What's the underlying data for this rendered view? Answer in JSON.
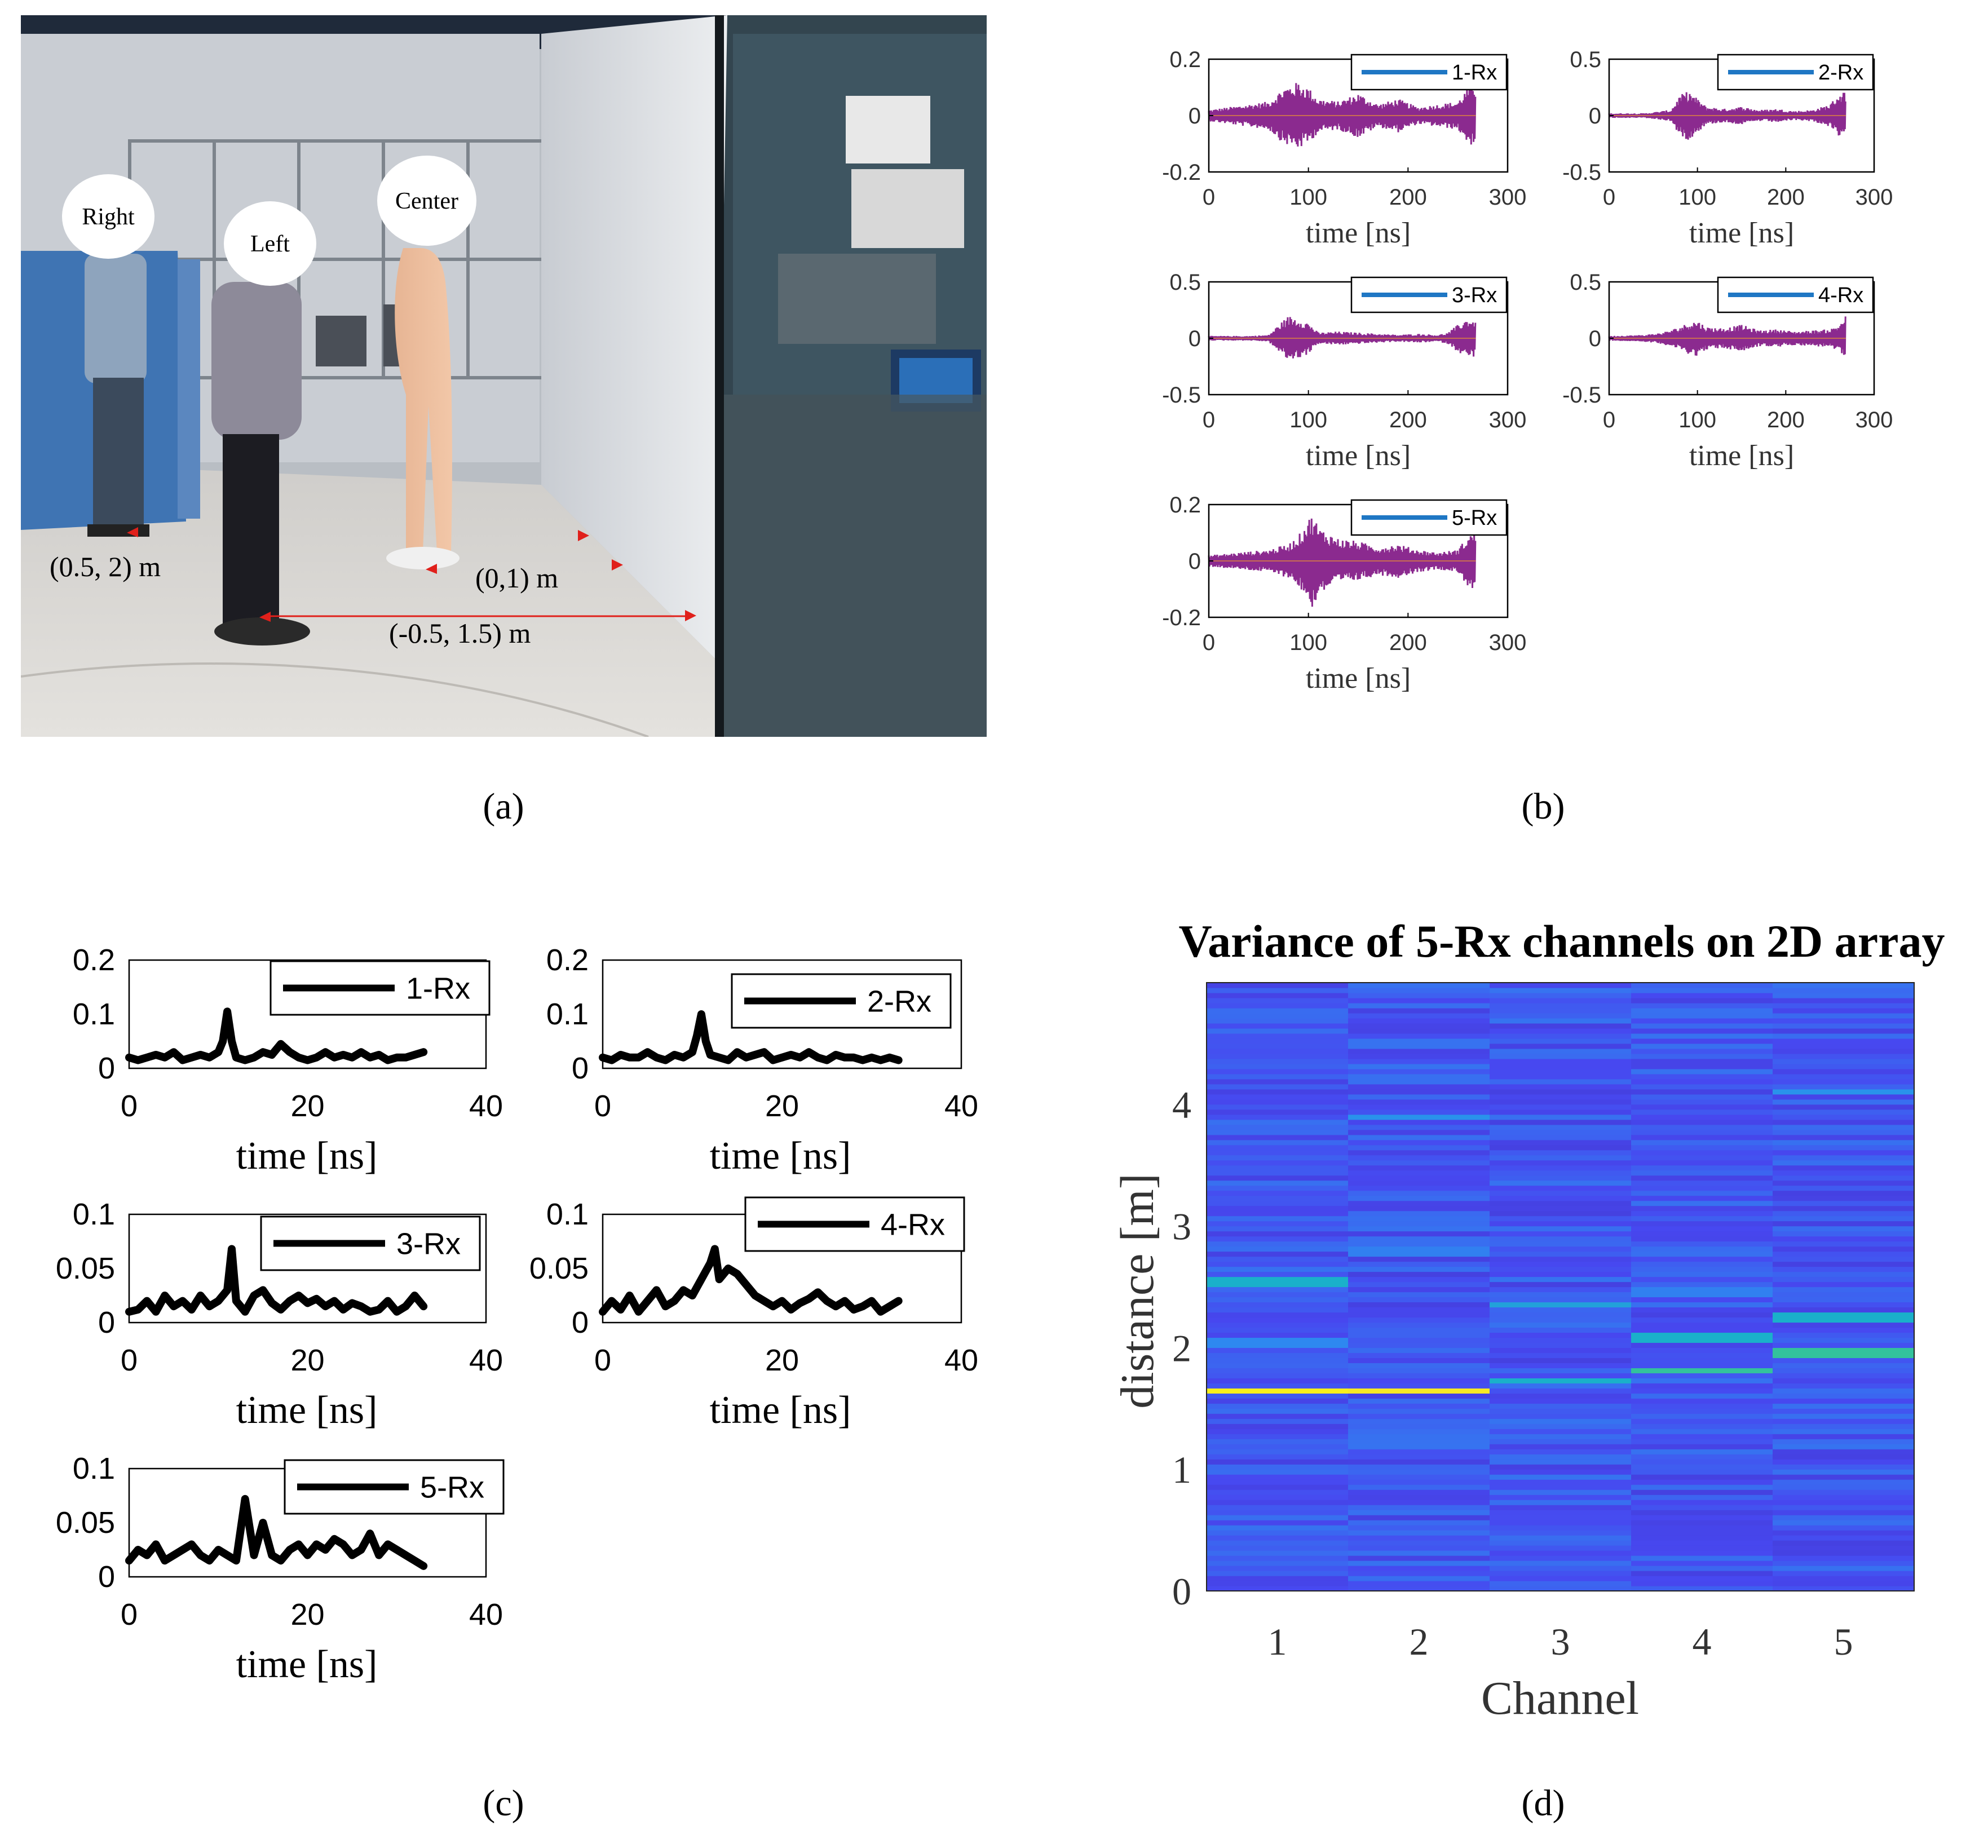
{
  "figure": {
    "panel_labels": {
      "a": "(a)",
      "b": "(b)",
      "c": "(c)",
      "d": "(d)"
    }
  },
  "photo": {
    "head_labels": [
      "Right",
      "Left",
      "Center"
    ],
    "position_labels": [
      "(0.5, 2) m",
      "(0,1) m",
      "(-0.5, 1.5) m"
    ],
    "colors": {
      "wall": "#d9dce0",
      "floor": "#d8d6d2",
      "ceiling": "#1f2a3a",
      "partition": "#3f74b3",
      "glass": "#33454f",
      "marker": "#e0201b"
    }
  },
  "chart_data": [
    {
      "id": "b",
      "type": "line",
      "title": "",
      "xlabel": "time [ns]",
      "ylabel": "",
      "x_range": [
        0,
        300
      ],
      "x_ticks": [
        0,
        100,
        200,
        300
      ],
      "line_color": "#1f77c4",
      "signal_color": "#8b2a8f",
      "plots": [
        {
          "legend": "1-Rx",
          "ylim": [
            -0.2,
            0.2
          ],
          "yticks": [
            "0.2",
            "0",
            "-0.2"
          ],
          "series": [
            {
              "name": "1-Rx",
              "x": [
                0,
                20,
                40,
                60,
                75,
                90,
                100,
                110,
                130,
                150,
                170,
                190,
                210,
                230,
                250,
                260,
                268
              ],
              "amp": [
                0.02,
                0.03,
                0.04,
                0.05,
                0.1,
                0.12,
                0.1,
                0.06,
                0.05,
                0.08,
                0.04,
                0.06,
                0.03,
                0.04,
                0.05,
                0.1,
                0.11
              ]
            }
          ]
        },
        {
          "legend": "2-Rx",
          "ylim": [
            -0.5,
            0.5
          ],
          "yticks": [
            "0.5",
            "0",
            "-0.5"
          ],
          "series": [
            {
              "name": "2-Rx",
              "x": [
                0,
                40,
                70,
                80,
                90,
                100,
                110,
                130,
                150,
                170,
                190,
                210,
                230,
                250,
                260,
                268
              ],
              "amp": [
                0.02,
                0.02,
                0.05,
                0.18,
                0.22,
                0.15,
                0.08,
                0.06,
                0.08,
                0.05,
                0.06,
                0.04,
                0.05,
                0.1,
                0.2,
                0.22
              ]
            }
          ]
        },
        {
          "legend": "3-Rx",
          "ylim": [
            -0.5,
            0.5
          ],
          "yticks": [
            "0.5",
            "0",
            "-0.5"
          ],
          "series": [
            {
              "name": "3-Rx",
              "x": [
                0,
                40,
                60,
                70,
                80,
                90,
                100,
                110,
                130,
                150,
                170,
                190,
                210,
                230,
                240,
                250,
                260,
                268
              ],
              "amp": [
                0.02,
                0.02,
                0.03,
                0.12,
                0.2,
                0.18,
                0.14,
                0.05,
                0.06,
                0.05,
                0.04,
                0.03,
                0.04,
                0.03,
                0.05,
                0.12,
                0.18,
                0.16
              ]
            }
          ]
        },
        {
          "legend": "4-Rx",
          "ylim": [
            -0.5,
            0.5
          ],
          "yticks": [
            "0.5",
            "0",
            "-0.5"
          ],
          "series": [
            {
              "name": "4-Rx",
              "x": [
                0,
                40,
                60,
                80,
                90,
                100,
                110,
                130,
                150,
                170,
                190,
                210,
                230,
                250,
                260,
                268
              ],
              "amp": [
                0.02,
                0.03,
                0.05,
                0.1,
                0.14,
                0.16,
                0.1,
                0.09,
                0.12,
                0.07,
                0.08,
                0.06,
                0.07,
                0.08,
                0.12,
                0.22
              ]
            }
          ]
        },
        {
          "legend": "5-Rx",
          "ylim": [
            -0.2,
            0.2
          ],
          "yticks": [
            "0.2",
            "0",
            "-0.2"
          ],
          "series": [
            {
              "name": "5-Rx",
              "x": [
                0,
                30,
                60,
                80,
                90,
                100,
                105,
                110,
                130,
                150,
                170,
                190,
                210,
                230,
                250,
                260,
                268
              ],
              "amp": [
                0.02,
                0.03,
                0.04,
                0.06,
                0.09,
                0.15,
                0.17,
                0.12,
                0.08,
                0.07,
                0.05,
                0.06,
                0.04,
                0.03,
                0.04,
                0.09,
                0.11
              ]
            }
          ]
        }
      ]
    },
    {
      "id": "c",
      "type": "line",
      "title": "",
      "xlabel": "time [ns]",
      "ylabel": "",
      "x_range": [
        0,
        40
      ],
      "x_ticks": [
        0,
        20,
        40
      ],
      "line_color": "#000000",
      "plots": [
        {
          "legend": "1-Rx",
          "ylim": [
            0,
            0.2
          ],
          "yticks": [
            "0.2",
            "0.1",
            "0"
          ],
          "series": [
            {
              "name": "1-Rx",
              "x": [
                0,
                1,
                2,
                3,
                4,
                5,
                6,
                7,
                8,
                9,
                10,
                10.5,
                11,
                11.5,
                12,
                13,
                14,
                15,
                16,
                17,
                18,
                19,
                20,
                21,
                22,
                23,
                24,
                25,
                26,
                27,
                28,
                29,
                30,
                31,
                32,
                33
              ],
              "y": [
                0.02,
                0.015,
                0.02,
                0.025,
                0.02,
                0.03,
                0.015,
                0.02,
                0.025,
                0.02,
                0.03,
                0.05,
                0.105,
                0.05,
                0.02,
                0.015,
                0.02,
                0.03,
                0.025,
                0.045,
                0.03,
                0.02,
                0.015,
                0.02,
                0.03,
                0.02,
                0.025,
                0.02,
                0.03,
                0.02,
                0.025,
                0.015,
                0.02,
                0.02,
                0.025,
                0.03
              ]
            }
          ]
        },
        {
          "legend": "2-Rx",
          "ylim": [
            0,
            0.2
          ],
          "yticks": [
            "0.2",
            "0.1",
            "0"
          ],
          "series": [
            {
              "name": "2-Rx",
              "x": [
                0,
                1,
                2,
                3,
                4,
                5,
                6,
                7,
                8,
                9,
                10,
                10.5,
                11,
                11.5,
                12,
                13,
                14,
                15,
                16,
                17,
                18,
                19,
                20,
                21,
                22,
                23,
                24,
                25,
                26,
                27,
                28,
                29,
                30,
                31,
                32,
                33
              ],
              "y": [
                0.02,
                0.015,
                0.025,
                0.02,
                0.02,
                0.03,
                0.02,
                0.015,
                0.025,
                0.02,
                0.03,
                0.06,
                0.1,
                0.05,
                0.025,
                0.02,
                0.015,
                0.03,
                0.02,
                0.025,
                0.03,
                0.015,
                0.02,
                0.025,
                0.02,
                0.03,
                0.02,
                0.015,
                0.025,
                0.02,
                0.02,
                0.015,
                0.02,
                0.015,
                0.02,
                0.015
              ]
            }
          ]
        },
        {
          "legend": "3-Rx",
          "ylim": [
            0,
            0.1
          ],
          "yticks": [
            "0.1",
            "0.05",
            "0"
          ],
          "series": [
            {
              "name": "3-Rx",
              "x": [
                0,
                1,
                2,
                3,
                4,
                5,
                6,
                7,
                8,
                9,
                10,
                11,
                11.5,
                12,
                13,
                14,
                15,
                16,
                17,
                18,
                19,
                20,
                21,
                22,
                23,
                24,
                25,
                26,
                27,
                28,
                29,
                30,
                31,
                32,
                33
              ],
              "y": [
                0.01,
                0.012,
                0.02,
                0.01,
                0.025,
                0.015,
                0.02,
                0.012,
                0.025,
                0.015,
                0.02,
                0.03,
                0.068,
                0.02,
                0.01,
                0.025,
                0.03,
                0.018,
                0.012,
                0.02,
                0.025,
                0.018,
                0.022,
                0.015,
                0.02,
                0.012,
                0.018,
                0.015,
                0.01,
                0.012,
                0.02,
                0.01,
                0.015,
                0.025,
                0.015
              ]
            }
          ]
        },
        {
          "legend": "4-Rx",
          "ylim": [
            0,
            0.1
          ],
          "yticks": [
            "0.1",
            "0.05",
            "0"
          ],
          "series": [
            {
              "name": "4-Rx",
              "x": [
                0,
                1,
                2,
                3,
                4,
                5,
                6,
                7,
                8,
                9,
                10,
                11,
                12,
                12.5,
                13,
                14,
                15,
                16,
                17,
                18,
                19,
                20,
                21,
                22,
                23,
                24,
                25,
                26,
                27,
                28,
                29,
                30,
                31,
                32,
                33
              ],
              "y": [
                0.01,
                0.02,
                0.012,
                0.025,
                0.01,
                0.02,
                0.03,
                0.015,
                0.02,
                0.03,
                0.025,
                0.04,
                0.055,
                0.068,
                0.04,
                0.05,
                0.045,
                0.035,
                0.025,
                0.02,
                0.015,
                0.02,
                0.012,
                0.018,
                0.022,
                0.028,
                0.02,
                0.015,
                0.02,
                0.012,
                0.015,
                0.02,
                0.01,
                0.015,
                0.02
              ]
            }
          ]
        },
        {
          "legend": "5-Rx",
          "ylim": [
            0,
            0.1
          ],
          "yticks": [
            "0.1",
            "0.05",
            "0"
          ],
          "series": [
            {
              "name": "5-Rx",
              "x": [
                0,
                1,
                2,
                3,
                4,
                5,
                6,
                7,
                8,
                9,
                10,
                11,
                12,
                13,
                14,
                15,
                16,
                17,
                18,
                19,
                20,
                21,
                22,
                23,
                24,
                25,
                26,
                27,
                28,
                29,
                30,
                31,
                32,
                33
              ],
              "y": [
                0.015,
                0.025,
                0.02,
                0.03,
                0.015,
                0.02,
                0.025,
                0.03,
                0.02,
                0.015,
                0.025,
                0.02,
                0.015,
                0.072,
                0.02,
                0.05,
                0.02,
                0.015,
                0.025,
                0.03,
                0.02,
                0.03,
                0.025,
                0.035,
                0.03,
                0.02,
                0.025,
                0.04,
                0.02,
                0.03,
                0.025,
                0.02,
                0.015,
                0.01
              ]
            }
          ]
        }
      ]
    },
    {
      "id": "d",
      "type": "heatmap",
      "title": "Variance of 5-Rx channels on 2D array",
      "xlabel": "Channel",
      "ylabel": "distance [m]",
      "categories": [
        "1",
        "2",
        "3",
        "4",
        "5"
      ],
      "ylim": [
        0,
        5
      ],
      "yticks": [
        "0",
        "1",
        "2",
        "3",
        "4"
      ],
      "colormap": [
        "#3e26a8",
        "#4748f0",
        "#2c8ef0",
        "#12beb9",
        "#81cc59",
        "#f5d53a",
        "#f9fb0e"
      ],
      "peaks": [
        {
          "channel": 1,
          "distance": 1.65,
          "value": 0.95
        },
        {
          "channel": 1,
          "distance": 2.55,
          "value": 0.45
        },
        {
          "channel": 1,
          "distance": 2.05,
          "value": 0.32
        },
        {
          "channel": 2,
          "distance": 1.65,
          "value": 0.92
        },
        {
          "channel": 2,
          "distance": 3.9,
          "value": 0.35
        },
        {
          "channel": 2,
          "distance": 2.8,
          "value": 0.3
        },
        {
          "channel": 3,
          "distance": 1.72,
          "value": 0.45
        },
        {
          "channel": 3,
          "distance": 2.35,
          "value": 0.4
        },
        {
          "channel": 4,
          "distance": 1.82,
          "value": 0.55
        },
        {
          "channel": 4,
          "distance": 2.08,
          "value": 0.45
        },
        {
          "channel": 4,
          "distance": 2.45,
          "value": 0.3
        },
        {
          "channel": 5,
          "distance": 1.95,
          "value": 0.55
        },
        {
          "channel": 5,
          "distance": 2.25,
          "value": 0.45
        },
        {
          "channel": 5,
          "distance": 4.1,
          "value": 0.35
        }
      ]
    }
  ]
}
